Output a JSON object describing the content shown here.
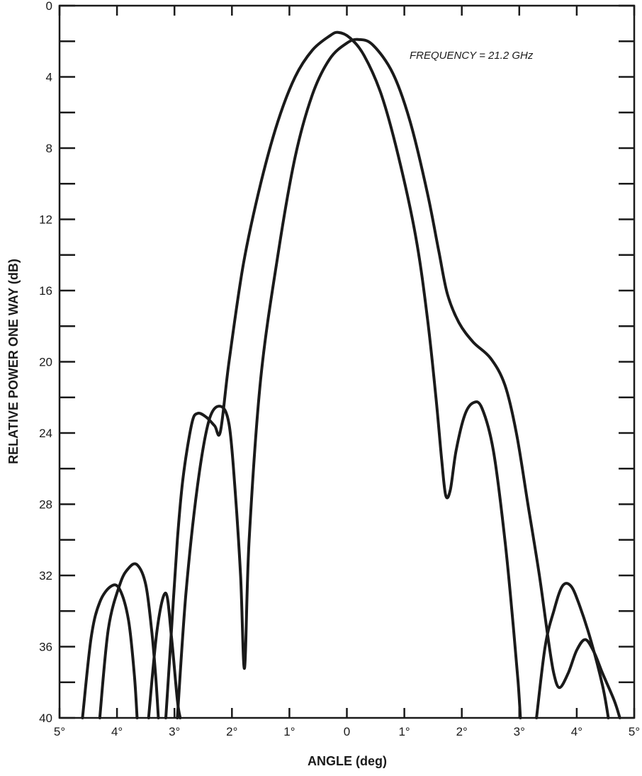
{
  "chart_data": {
    "type": "line",
    "title": "",
    "xlabel": "ANGLE (deg)",
    "ylabel": "RELATIVE POWER ONE WAY (dB)",
    "annotation": "FREQUENCY = 21.2 GHz",
    "xlim": [
      -5,
      5
    ],
    "ylim": [
      0,
      40
    ],
    "y_axis_inverted": true,
    "grid": false,
    "x_tick_labels": [
      "5°",
      "4°",
      "3°",
      "2°",
      "1°",
      "0",
      "1°",
      "2°",
      "3°",
      "4°",
      "5°"
    ],
    "x_tick_values": [
      -5,
      -4,
      -3,
      -2,
      -1,
      0,
      1,
      2,
      3,
      4,
      5
    ],
    "y_tick_labels": [
      "0",
      "4",
      "8",
      "12",
      "16",
      "20",
      "24",
      "28",
      "32",
      "36",
      "40"
    ],
    "y_tick_values": [
      0,
      4,
      8,
      12,
      16,
      20,
      24,
      28,
      32,
      36,
      40
    ],
    "series": [
      {
        "segments": [
          [
            [
              -4.6,
              40
            ],
            [
              -4.45,
              35.5
            ],
            [
              -4.3,
              33.5
            ],
            [
              -4.1,
              32.6
            ],
            [
              -3.95,
              32.8
            ],
            [
              -3.8,
              34.5
            ],
            [
              -3.7,
              37.5
            ],
            [
              -3.65,
              40
            ]
          ],
          [
            [
              -3.15,
              40
            ],
            [
              -3.05,
              35
            ],
            [
              -2.95,
              30
            ],
            [
              -2.85,
              26.5
            ],
            [
              -2.7,
              23.5
            ],
            [
              -2.6,
              22.9
            ],
            [
              -2.45,
              23.1
            ],
            [
              -2.3,
              23.6
            ],
            [
              -2.2,
              23.9
            ],
            [
              -2.05,
              20
            ],
            [
              -1.8,
              14.5
            ],
            [
              -1.5,
              10
            ],
            [
              -1.2,
              6.5
            ],
            [
              -0.9,
              4
            ],
            [
              -0.6,
              2.5
            ],
            [
              -0.3,
              1.7
            ],
            [
              -0.15,
              1.5
            ],
            [
              0.05,
              1.8
            ],
            [
              0.3,
              2.8
            ],
            [
              0.6,
              5
            ],
            [
              0.9,
              8.5
            ],
            [
              1.2,
              13
            ],
            [
              1.4,
              17.5
            ],
            [
              1.55,
              22
            ],
            [
              1.65,
              25.5
            ],
            [
              1.72,
              27.5
            ],
            [
              1.8,
              27.2
            ],
            [
              1.9,
              25
            ],
            [
              2.05,
              23
            ],
            [
              2.2,
              22.3
            ],
            [
              2.35,
              22.6
            ],
            [
              2.55,
              25
            ],
            [
              2.75,
              30
            ],
            [
              2.9,
              35
            ],
            [
              2.98,
              38
            ],
            [
              3.02,
              40
            ]
          ],
          [
            [
              3.3,
              40
            ],
            [
              3.45,
              36
            ],
            [
              3.6,
              34
            ],
            [
              3.75,
              32.6
            ],
            [
              3.9,
              32.6
            ],
            [
              4.05,
              33.7
            ],
            [
              4.25,
              35.7
            ],
            [
              4.45,
              38.2
            ],
            [
              4.55,
              40
            ]
          ]
        ]
      },
      {
        "segments": [
          [
            [
              -4.3,
              40
            ],
            [
              -4.15,
              35
            ],
            [
              -3.95,
              32.5
            ],
            [
              -3.8,
              31.6
            ],
            [
              -3.65,
              31.4
            ],
            [
              -3.5,
              32.5
            ],
            [
              -3.4,
              35
            ],
            [
              -3.33,
              37.5
            ],
            [
              -3.28,
              40
            ]
          ],
          [
            [
              -3.45,
              40
            ],
            [
              -3.3,
              35
            ],
            [
              -3.15,
              33
            ],
            [
              -3.05,
              35.5
            ],
            [
              -2.95,
              39
            ],
            [
              -2.9,
              40
            ]
          ],
          [
            [
              -2.95,
              40
            ],
            [
              -2.8,
              33
            ],
            [
              -2.6,
              27
            ],
            [
              -2.4,
              23.3
            ],
            [
              -2.2,
              22.5
            ],
            [
              -2.05,
              23.5
            ],
            [
              -1.95,
              27
            ],
            [
              -1.85,
              32
            ],
            [
              -1.78,
              37.2
            ],
            [
              -1.7,
              30
            ],
            [
              -1.5,
              21
            ],
            [
              -1.2,
              14
            ],
            [
              -0.9,
              8.5
            ],
            [
              -0.6,
              5
            ],
            [
              -0.3,
              3
            ],
            [
              0,
              2.1
            ],
            [
              0.2,
              1.9
            ],
            [
              0.45,
              2.2
            ],
            [
              0.8,
              3.8
            ],
            [
              1.1,
              6.5
            ],
            [
              1.4,
              10.5
            ],
            [
              1.6,
              13.8
            ],
            [
              1.75,
              16.2
            ],
            [
              1.95,
              17.8
            ],
            [
              2.2,
              18.9
            ],
            [
              2.5,
              19.8
            ],
            [
              2.75,
              21.3
            ],
            [
              2.95,
              24
            ],
            [
              3.15,
              28
            ],
            [
              3.35,
              32
            ],
            [
              3.5,
              35.5
            ],
            [
              3.6,
              37.5
            ],
            [
              3.7,
              38.3
            ],
            [
              3.85,
              37.5
            ],
            [
              4.0,
              36.2
            ],
            [
              4.15,
              35.6
            ],
            [
              4.3,
              36.3
            ],
            [
              4.45,
              37.5
            ],
            [
              4.65,
              39
            ],
            [
              4.75,
              40
            ]
          ]
        ]
      }
    ]
  }
}
